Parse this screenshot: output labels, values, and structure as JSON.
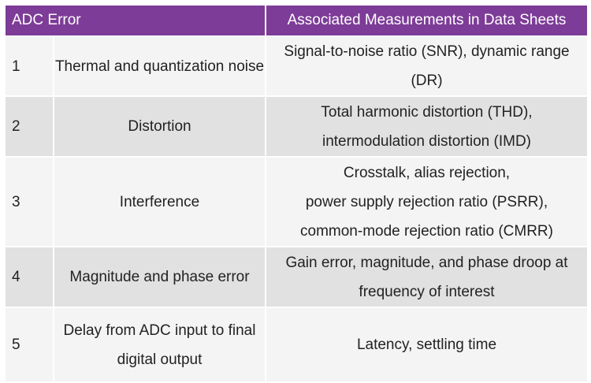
{
  "table": {
    "headers": [
      "ADC Error",
      "Associated Measurements in Data Sheets"
    ],
    "rows": [
      {
        "num": "1",
        "error": [
          "Thermal and quantization noise"
        ],
        "measurements": [
          "Signal-to-noise ratio (SNR), dynamic range (DR)"
        ]
      },
      {
        "num": "2",
        "error": [
          "Distortion"
        ],
        "measurements": [
          "Total harmonic distortion (THD),",
          "intermodulation distortion (IMD)"
        ]
      },
      {
        "num": "3",
        "error": [
          "Interference"
        ],
        "measurements": [
          "Crosstalk, alias rejection,",
          "power supply rejection ratio (PSRR),",
          "common-mode rejection ratio (CMRR)"
        ]
      },
      {
        "num": "4",
        "error": [
          "Magnitude and phase error"
        ],
        "measurements": [
          "Gain error, magnitude, and phase droop at",
          "frequency of interest"
        ]
      },
      {
        "num": "5",
        "error": [
          "Delay from ADC input to final",
          "digital output"
        ],
        "measurements": [
          "Latency, settling time"
        ]
      }
    ]
  },
  "colors": {
    "header_bg": "#7d3c98",
    "header_text": "#ffffff",
    "row_light": "#f4f4f4",
    "row_dark": "#e1e1e1",
    "body_text": "#222222"
  }
}
